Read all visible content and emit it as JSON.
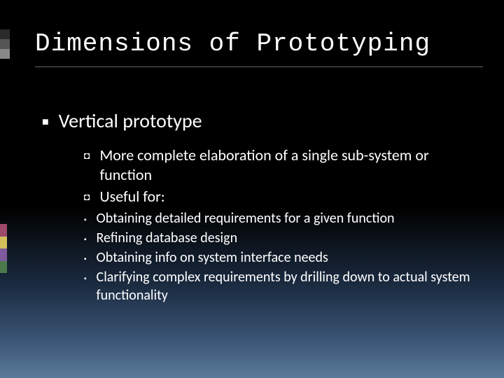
{
  "title": "Dimensions of Prototyping",
  "lvl1": {
    "item0": "Vertical prototype"
  },
  "lvl2": {
    "item0": "More complete elaboration of a single sub-system or function",
    "item1": "Useful for:"
  },
  "lvl3": {
    "item0": "Obtaining detailed requirements for a given function",
    "item1": "Refining database design",
    "item2": "Obtaining info on system interface needs",
    "item3": "Clarifying complex requirements by drilling down to actual system functionality"
  },
  "style": {
    "title_font": "Consolas",
    "title_fontsize": 36,
    "body_font": "Calibri",
    "lvl1_fontsize": 28,
    "lvl2_fontsize": 22,
    "lvl3_fontsize": 20,
    "text_color": "#ffffff",
    "bg_gradient_top": "#000000",
    "bg_gradient_bottom": "#5a7a9a",
    "accent_colors_top": [
      "#2a2a2a",
      "#555555",
      "#888888"
    ],
    "accent_colors_side": [
      "#9e4a6a",
      "#d4c05a",
      "#7d5a9e",
      "#4a7a4a"
    ],
    "underline_color": "#666666"
  }
}
